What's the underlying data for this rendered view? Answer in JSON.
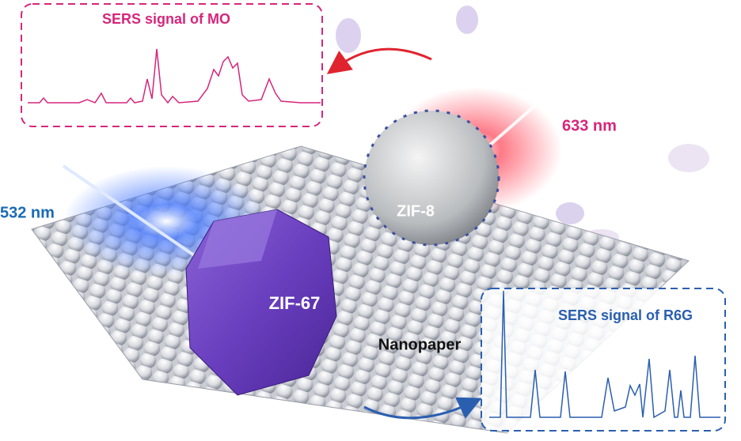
{
  "spectra": [
    {
      "title": "SERS signal of MO"
    },
    {
      "title": "SERS signal of R6G"
    }
  ],
  "lasers": [
    {
      "label": "633 nm"
    },
    {
      "label": "532 nm"
    }
  ],
  "frameworks": [
    {
      "label": "ZIF-8"
    },
    {
      "label": "ZIF-67"
    }
  ],
  "substrate": {
    "label": "Nanopaper"
  }
}
